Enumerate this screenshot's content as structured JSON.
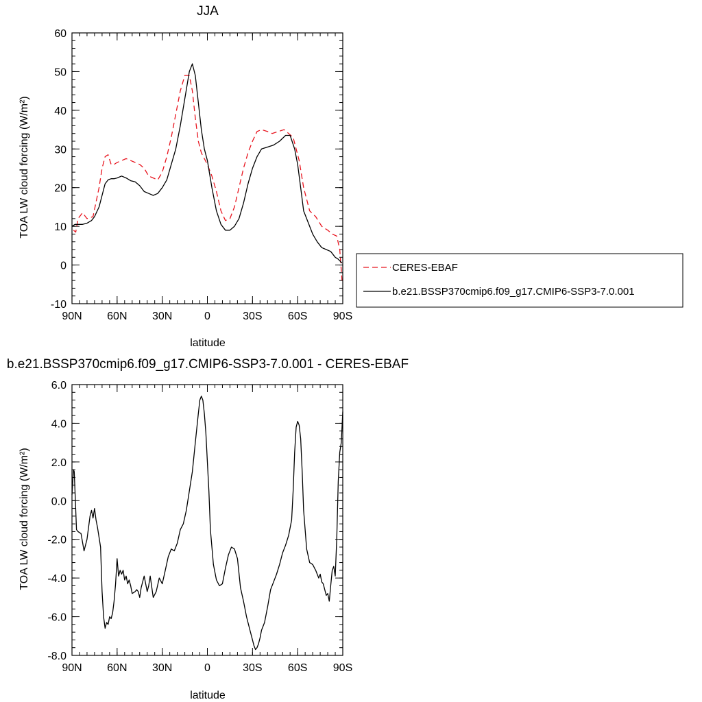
{
  "chart_data": [
    {
      "type": "line",
      "title": "JJA",
      "xlabel": "latitude",
      "ylabel": "TOA LW cloud forcing (W/m²)",
      "xlim": [
        90,
        -90
      ],
      "ylim": [
        -10,
        60
      ],
      "x_ticks": [
        90,
        60,
        30,
        0,
        -30,
        -60,
        -90
      ],
      "x_tick_labels": [
        "90N",
        "60N",
        "30N",
        "0",
        "30S",
        "60S",
        "90S"
      ],
      "y_ticks": [
        -10,
        0,
        10,
        20,
        30,
        40,
        50,
        60
      ],
      "y_tick_labels": [
        "-10",
        "0",
        "10",
        "20",
        "30",
        "40",
        "50",
        "60"
      ],
      "legend_position": "right",
      "series": [
        {
          "name": "CERES-EBAF",
          "color": "#e8141e",
          "dash": "dashed",
          "x": [
            89,
            87.5,
            86,
            83,
            80,
            76,
            72,
            70,
            68,
            66,
            64,
            62,
            60,
            57,
            54,
            51,
            48,
            45,
            42,
            39,
            36,
            33,
            30,
            27,
            24,
            21,
            18,
            15,
            12,
            10,
            8,
            6,
            4,
            2,
            0,
            -3,
            -6,
            -9,
            -12,
            -15,
            -18,
            -21,
            -24,
            -27,
            -30,
            -33,
            -36,
            -40,
            -43,
            -47,
            -51,
            -54,
            -57,
            -59,
            -61,
            -64,
            -68,
            -72,
            -76,
            -80,
            -83,
            -86,
            -88,
            -89.5
          ],
          "y": [
            9,
            8.5,
            12,
            13.5,
            12,
            12.5,
            20,
            25,
            28,
            28.5,
            26,
            26,
            26.5,
            27,
            27.5,
            27,
            26.5,
            26,
            25,
            23,
            22.5,
            22,
            24,
            28,
            33,
            39,
            45,
            49,
            49,
            45,
            38,
            32,
            29,
            27.5,
            26,
            23,
            19,
            14,
            11.5,
            12,
            15,
            20,
            25,
            29,
            32,
            34.5,
            35,
            34.5,
            34,
            34.5,
            35,
            34,
            33,
            30,
            27,
            20,
            14,
            12.5,
            10,
            9,
            8,
            7.5,
            4,
            -4
          ],
          "labels": []
        },
        {
          "name": "b.e21.BSSP370cmip6.f09_g17.CMIP6-SSP3-7.0.001",
          "color": "#000000",
          "dash": "solid",
          "x": [
            90,
            88,
            86,
            83,
            80,
            77,
            75,
            72,
            70,
            68,
            66,
            64,
            62,
            60,
            57,
            54,
            51,
            48,
            45,
            42,
            39,
            36,
            33,
            30,
            27,
            24,
            21,
            18,
            15,
            12,
            10,
            8,
            6,
            4,
            2,
            0,
            -3,
            -6,
            -9,
            -12,
            -15,
            -18,
            -21,
            -24,
            -27,
            -30,
            -33,
            -36,
            -40,
            -44,
            -48,
            -52,
            -55,
            -58,
            -60,
            -62,
            -64,
            -67,
            -70,
            -73,
            -76,
            -79,
            -82,
            -85,
            -87,
            -89.5
          ],
          "y": [
            10,
            10.5,
            10.5,
            10.5,
            10.8,
            11.5,
            12.5,
            15,
            18,
            21,
            22,
            22.3,
            22.3,
            22.5,
            23,
            22.5,
            21.8,
            21.5,
            20.5,
            19,
            18.5,
            18,
            18.5,
            20,
            22,
            26,
            30,
            36,
            43,
            50,
            52,
            49,
            42,
            35,
            30,
            27,
            20,
            14,
            10.5,
            9,
            9,
            10,
            12,
            16,
            21,
            25,
            28,
            30,
            30.5,
            31,
            32,
            33.5,
            33.5,
            30,
            26,
            20,
            14,
            11,
            8,
            6,
            4.5,
            4,
            3.5,
            2,
            1.5,
            0.5
          ],
          "labels": []
        }
      ]
    },
    {
      "type": "line",
      "title": "b.e21.BSSP370cmip6.f09_g17.CMIP6-SSP3-7.0.001 - CERES-EBAF",
      "xlabel": "latitude",
      "ylabel": "TOA LW cloud forcing (W/m²)",
      "xlim": [
        90,
        -90
      ],
      "ylim": [
        -8,
        6
      ],
      "x_ticks": [
        90,
        60,
        30,
        0,
        -30,
        -60,
        -90
      ],
      "x_tick_labels": [
        "90N",
        "60N",
        "30N",
        "0",
        "30S",
        "60S",
        "90S"
      ],
      "y_ticks": [
        -8,
        -6,
        -4,
        -2,
        0,
        2,
        4,
        6
      ],
      "y_tick_labels": [
        "-8.0",
        "-6.0",
        "-4.0",
        "-2.0",
        "0.0",
        "2.0",
        "4.0",
        "6.0"
      ],
      "series": [
        {
          "name": "",
          "color": "#000000",
          "dash": "solid",
          "x": [
            90,
            89,
            88.5,
            88,
            87,
            86,
            84,
            82,
            80,
            78,
            77,
            76,
            75,
            74,
            73,
            72,
            71,
            70,
            69,
            68,
            67,
            66,
            65,
            64,
            63,
            62,
            61,
            60,
            59,
            58,
            57,
            56,
            55,
            54,
            53,
            52,
            51,
            50,
            48,
            47,
            46,
            45,
            44,
            42,
            40,
            39,
            38,
            36,
            34,
            32,
            30,
            28,
            26,
            24,
            22,
            20,
            18,
            16,
            14,
            12,
            10,
            8,
            6,
            5,
            4,
            3,
            2,
            1,
            0,
            -1,
            -2,
            -4,
            -6,
            -8,
            -10,
            -12,
            -14,
            -16,
            -18,
            -20,
            -22,
            -24,
            -26,
            -28,
            -30,
            -31,
            -32,
            -33,
            -34,
            -35,
            -36,
            -38,
            -40,
            -42,
            -44,
            -46,
            -48,
            -50,
            -52,
            -54,
            -56,
            -57,
            -58,
            -59,
            -60,
            -61,
            -62,
            -63,
            -64,
            -66,
            -68,
            -70,
            -72,
            -74,
            -75,
            -76,
            -77,
            -78,
            -79,
            -80,
            -81,
            -82,
            -83,
            -84,
            -85,
            -86,
            -87,
            -88,
            -89,
            -90
          ],
          "y": [
            0.3,
            1.6,
            1.5,
            0.5,
            -1.5,
            -1.6,
            -1.7,
            -2.6,
            -2,
            -0.8,
            -0.5,
            -0.9,
            -0.4,
            -1,
            -1.4,
            -1.9,
            -2.4,
            -4.7,
            -6.0,
            -6.6,
            -6.3,
            -6.4,
            -6.0,
            -6.1,
            -5.8,
            -5.2,
            -4.3,
            -3.0,
            -3.9,
            -3.6,
            -3.8,
            -3.6,
            -4.1,
            -3.9,
            -4.3,
            -4.1,
            -4.4,
            -4.8,
            -4.7,
            -4.6,
            -4.7,
            -5,
            -4.5,
            -3.9,
            -4.7,
            -4.4,
            -3.9,
            -5.0,
            -4.7,
            -4.0,
            -4.3,
            -3.6,
            -2.9,
            -2.5,
            -2.6,
            -2.2,
            -1.5,
            -1.2,
            -0.5,
            0.5,
            1.5,
            3,
            4.5,
            5.2,
            5.4,
            5.2,
            4.5,
            3.5,
            2,
            0.5,
            -1.5,
            -3.3,
            -4.1,
            -4.4,
            -4.3,
            -3.5,
            -2.8,
            -2.4,
            -2.5,
            -3,
            -4.5,
            -5.2,
            -6,
            -6.6,
            -7.2,
            -7.5,
            -7.7,
            -7.6,
            -7.4,
            -7.1,
            -6.7,
            -6.3,
            -5.5,
            -4.6,
            -4.2,
            -3.8,
            -3.3,
            -2.7,
            -2.3,
            -1.8,
            -1.0,
            0.5,
            2.5,
            3.8,
            4.1,
            3.9,
            3.2,
            1.5,
            -0.5,
            -2.5,
            -3.2,
            -3.3,
            -3.6,
            -4.0,
            -3.8,
            -4.2,
            -4.3,
            -4.6,
            -4.9,
            -4.8,
            -5.2,
            -4.4,
            -3.6,
            -3.4,
            -3.9,
            -2.0,
            1.0,
            2.5,
            3.0,
            4.6
          ],
          "labels": []
        }
      ]
    }
  ]
}
